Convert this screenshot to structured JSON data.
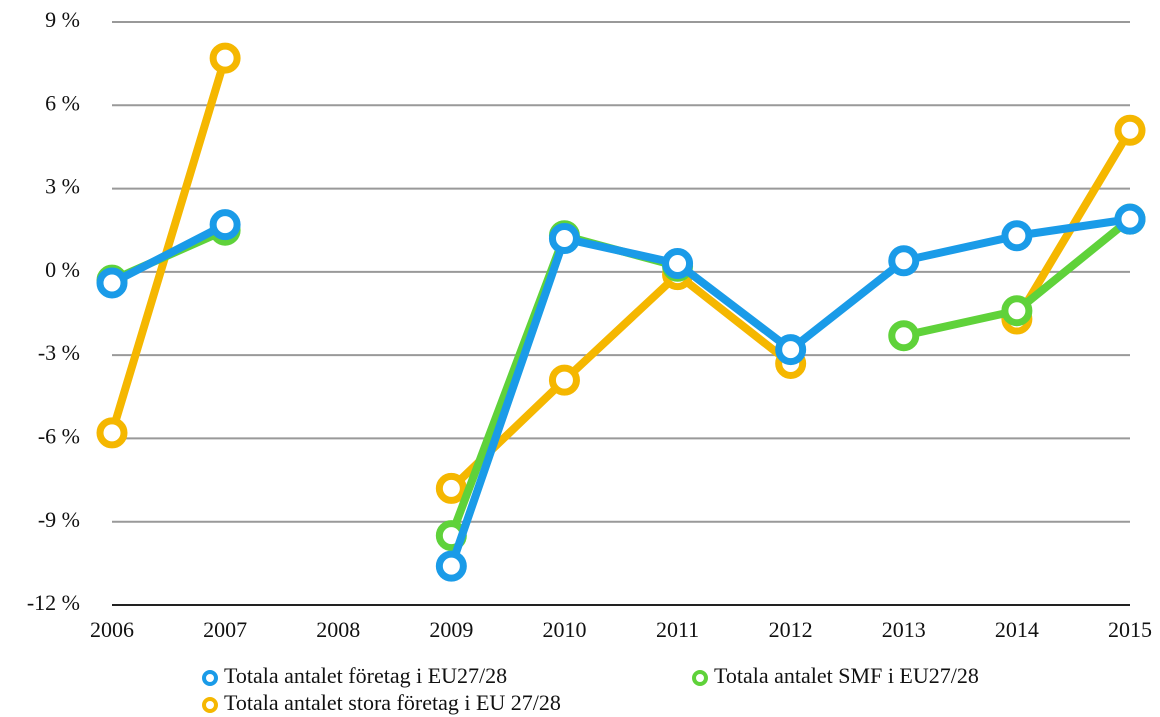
{
  "chart_data": {
    "type": "line",
    "categories": [
      "2006",
      "2007",
      "2008",
      "2009",
      "2010",
      "2011",
      "2012",
      "2013",
      "2014",
      "2015"
    ],
    "series": [
      {
        "name": "Totala antalet stora företag i EU 27/28",
        "color": "#f5b700",
        "values": [
          -5.8,
          7.7,
          null,
          -7.8,
          -3.9,
          -0.1,
          -3.3,
          null,
          -1.7,
          5.1
        ]
      },
      {
        "name": "Totala antalet SMF i EU27/28",
        "color": "#5fd23a",
        "values": [
          -0.3,
          1.5,
          null,
          -9.5,
          1.3,
          0.2,
          null,
          -2.3,
          -1.4,
          1.9
        ]
      },
      {
        "name": "Totala antalet företag i EU27/28",
        "color": "#1a9be8",
        "values": [
          -0.4,
          1.7,
          null,
          -10.6,
          1.2,
          0.3,
          -2.8,
          0.4,
          1.3,
          1.9
        ]
      }
    ],
    "ylim": [
      -12,
      9
    ],
    "yticks": [
      {
        "value": -12,
        "label": "-12 %"
      },
      {
        "value": -9,
        "label": "-9 %"
      },
      {
        "value": -6,
        "label": "-6 %"
      },
      {
        "value": -3,
        "label": "-3 %"
      },
      {
        "value": 0,
        "label": "0 %"
      },
      {
        "value": 3,
        "label": "3 %"
      },
      {
        "value": 6,
        "label": "6 %"
      },
      {
        "value": 9,
        "label": "9 %"
      }
    ],
    "grid": true
  }
}
